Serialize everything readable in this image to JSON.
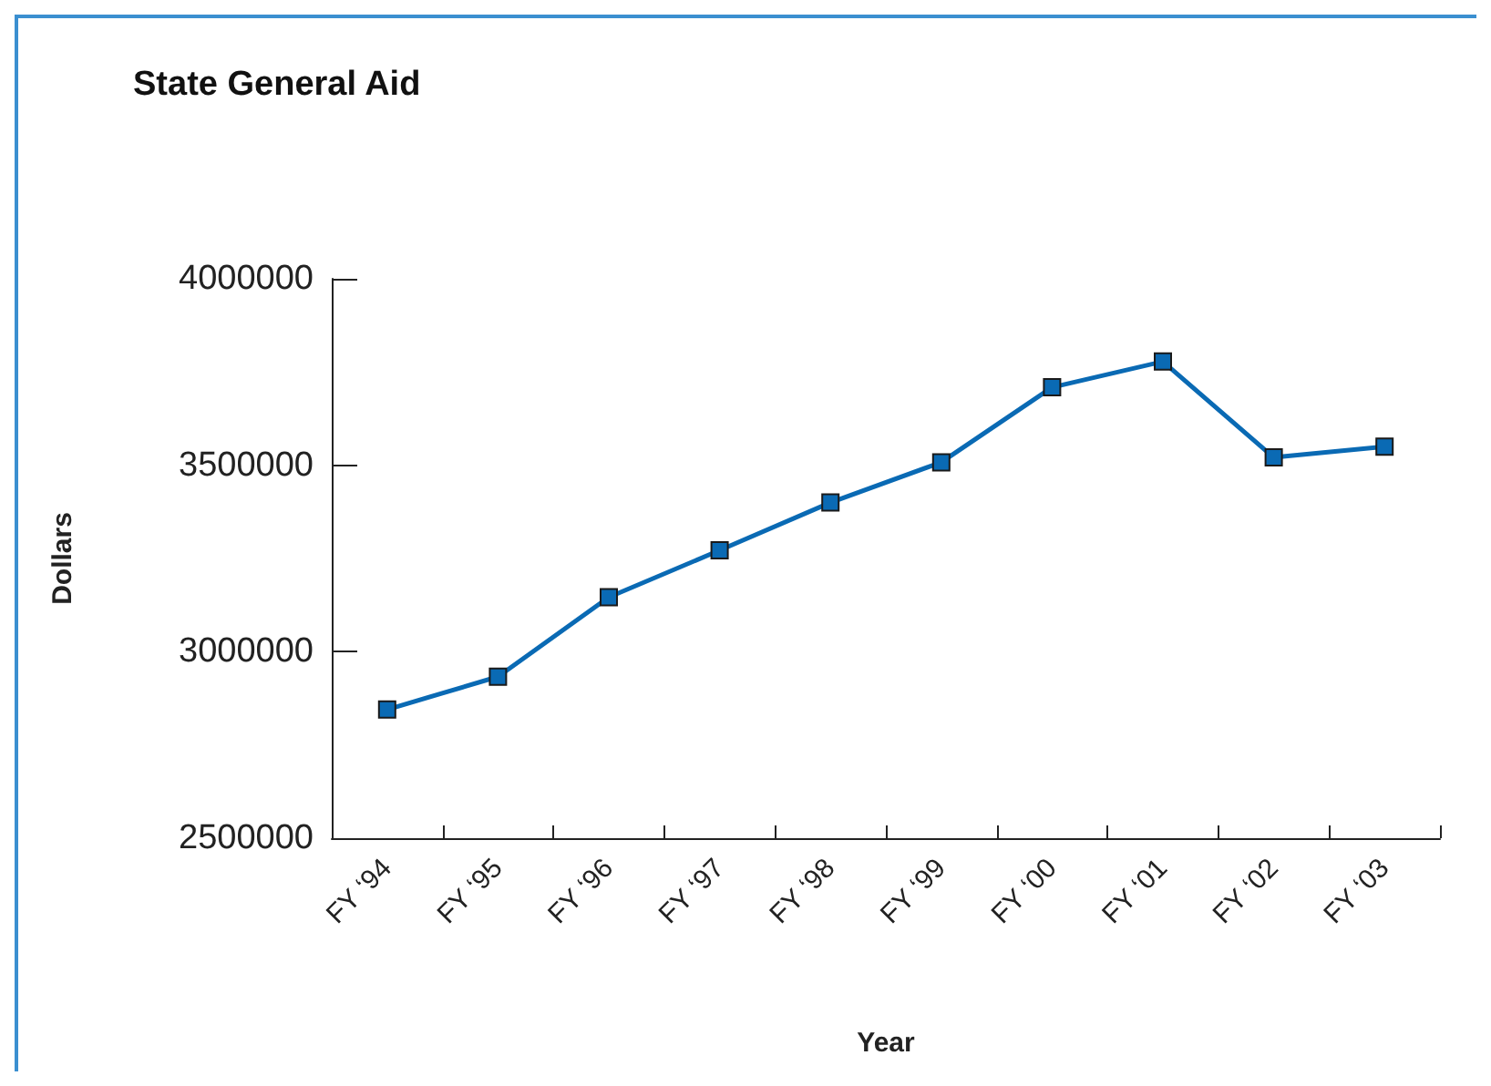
{
  "chart_data": {
    "type": "line",
    "title": "State General Aid",
    "xlabel": "Year",
    "ylabel": "Dollars",
    "categories": [
      "FY ‘94",
      "FY ‘95",
      "FY ‘96",
      "FY ‘97",
      "FY ‘98",
      "FY ‘99",
      "FY ‘00",
      "FY ‘01",
      "FY ‘02",
      "FY ‘03"
    ],
    "series": [
      {
        "color": "#0a6ab4",
        "values": [
          2845000,
          2933000,
          3146000,
          3272000,
          3400000,
          3508000,
          3709000,
          3778000,
          3521000,
          3550000
        ]
      }
    ],
    "ylim": [
      2500000,
      4000000
    ],
    "yticks": [
      2500000,
      3000000,
      3500000,
      4000000
    ],
    "grid": false,
    "marker": "square",
    "line_style": "solid"
  }
}
